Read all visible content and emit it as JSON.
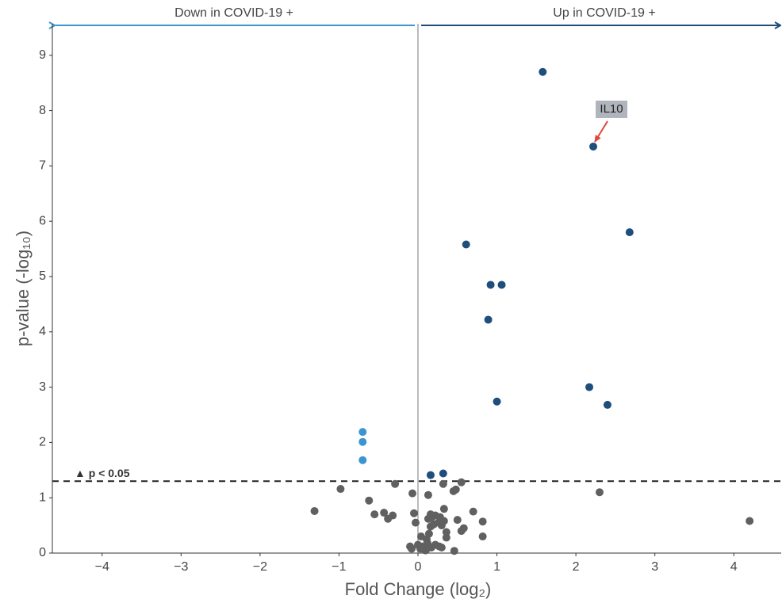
{
  "chart_data": {
    "type": "scatter",
    "left_header": "Down in COVID-19 +",
    "right_header": "Up in COVID-19 +",
    "x_label": "Fold Change (log₂)",
    "y_label": "p-value (-log₁₀)",
    "xlim": [
      -4.63,
      4.6
    ],
    "ylim": [
      0,
      9.57
    ],
    "xticks": [
      {
        "value": -4,
        "label": "−4"
      },
      {
        "value": -3,
        "label": "−3"
      },
      {
        "value": -2,
        "label": "−2"
      },
      {
        "value": -1,
        "label": "−1"
      },
      0,
      1,
      2,
      3,
      4
    ],
    "yticks": [
      0,
      1,
      2,
      3,
      4,
      5,
      6,
      7,
      8,
      9
    ],
    "threshold": {
      "value": 1.3,
      "label": "▲ p < 0.05"
    },
    "annotation": {
      "text": "IL10",
      "x": 2.22,
      "y": 7.35
    },
    "series": [
      {
        "color": "#1f4e7d",
        "x": [
          1.58,
          2.22,
          0.61,
          2.68,
          0.92,
          1.06,
          0.89,
          2.17,
          1.0,
          2.4,
          0.16,
          0.32
        ],
        "values": [
          8.7,
          7.35,
          5.58,
          5.8,
          4.85,
          4.85,
          4.22,
          3.0,
          2.74,
          2.68,
          1.41,
          1.44
        ]
      },
      {
        "color": "#3b95d0",
        "x": [
          -0.7,
          -0.7,
          -0.7
        ],
        "values": [
          2.19,
          2.01,
          1.68
        ]
      },
      {
        "color": "#606060",
        "x": [
          -1.31,
          -0.98,
          -0.62,
          -0.55,
          -0.43,
          -0.38,
          -0.32,
          -0.29,
          -0.07,
          -0.05,
          -0.03,
          -0.1,
          -0.08,
          0.0,
          0.03,
          0.06,
          0.1,
          0.13,
          0.13,
          0.18,
          0.22,
          0.28,
          0.16,
          0.2,
          0.26,
          0.3,
          0.33,
          0.33,
          0.36,
          0.36,
          0.14,
          0.11,
          0.12,
          0.17,
          0.22,
          0.27,
          0.3,
          0.09,
          0.46,
          0.32,
          0.45,
          0.48,
          0.55,
          0.5,
          0.55,
          0.58,
          0.7,
          0.82,
          0.82,
          2.3,
          4.2,
          0.16,
          0.04
        ],
        "values": [
          0.76,
          1.16,
          0.95,
          0.7,
          0.73,
          0.62,
          0.68,
          1.25,
          1.08,
          0.72,
          0.55,
          0.12,
          0.08,
          0.15,
          0.08,
          0.12,
          0.05,
          1.05,
          0.62,
          0.65,
          0.68,
          0.65,
          0.48,
          0.52,
          0.55,
          0.5,
          0.8,
          0.58,
          0.38,
          0.28,
          0.35,
          0.25,
          0.18,
          0.1,
          0.15,
          0.12,
          0.1,
          0.05,
          0.04,
          1.25,
          1.12,
          1.15,
          1.28,
          0.6,
          0.4,
          0.45,
          0.75,
          0.57,
          0.3,
          1.1,
          0.58,
          0.7,
          0.3
        ]
      }
    ]
  }
}
